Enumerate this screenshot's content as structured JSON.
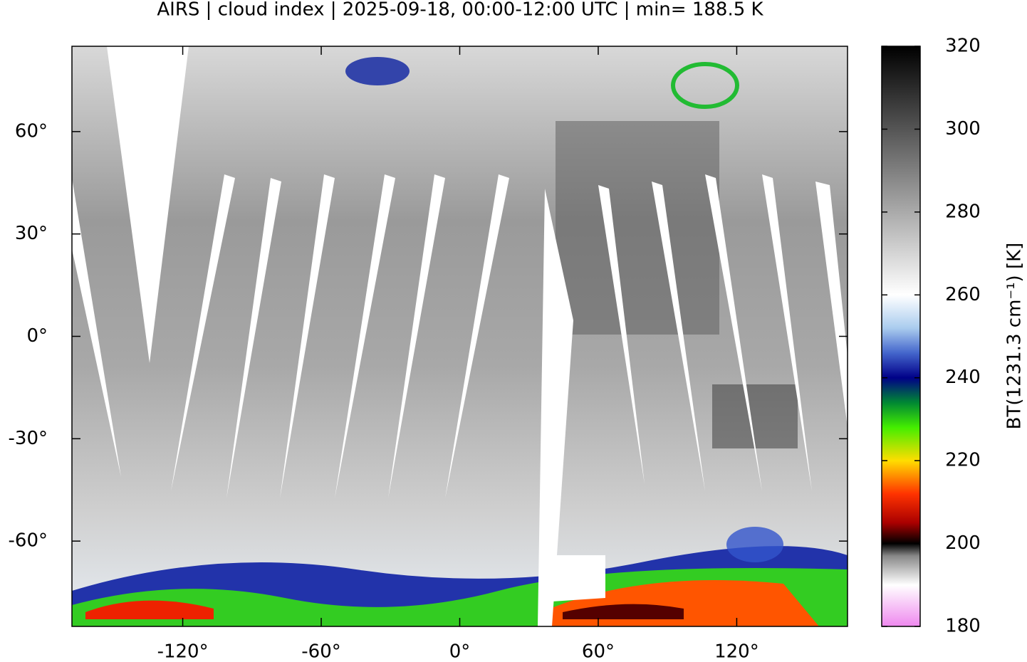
{
  "chart_data": {
    "type": "map",
    "title": "AIRS | cloud index | 2025-09-18, 00:00-12:00 UTC | min= 188.5 K",
    "xlim": [
      -168,
      168
    ],
    "ylim": [
      -85,
      85
    ],
    "xticks": [
      {
        "value": -120,
        "label": "-120°"
      },
      {
        "value": -60,
        "label": "-60°"
      },
      {
        "value": 0,
        "label": "0°"
      },
      {
        "value": 60,
        "label": "60°"
      },
      {
        "value": 120,
        "label": "120°"
      }
    ],
    "yticks": [
      {
        "value": 60,
        "label": "60°"
      },
      {
        "value": 30,
        "label": "30°"
      },
      {
        "value": 0,
        "label": "0°"
      },
      {
        "value": -30,
        "label": "-30°"
      },
      {
        "value": -60,
        "label": "-60°"
      }
    ],
    "colorbar": {
      "label": "BT(1231.3 cm⁻¹) [K]",
      "lim": [
        180,
        320
      ],
      "ticks": [
        180,
        200,
        220,
        240,
        260,
        280,
        300,
        320
      ],
      "colormap": [
        {
          "value": 180,
          "color": "#ee88ee"
        },
        {
          "value": 190,
          "color": "#ffffff"
        },
        {
          "value": 197,
          "color": "#888888"
        },
        {
          "value": 200,
          "color": "#000000"
        },
        {
          "value": 205,
          "color": "#aa0000"
        },
        {
          "value": 212,
          "color": "#ff3300"
        },
        {
          "value": 220,
          "color": "#ffdd00"
        },
        {
          "value": 228,
          "color": "#44ee00"
        },
        {
          "value": 234,
          "color": "#008833"
        },
        {
          "value": 240,
          "color": "#000088"
        },
        {
          "value": 246,
          "color": "#4466cc"
        },
        {
          "value": 252,
          "color": "#aaccee"
        },
        {
          "value": 260,
          "color": "#ffffff"
        },
        {
          "value": 280,
          "color": "#aaaaaa"
        },
        {
          "value": 300,
          "color": "#555555"
        },
        {
          "value": 320,
          "color": "#000000"
        }
      ]
    }
  }
}
